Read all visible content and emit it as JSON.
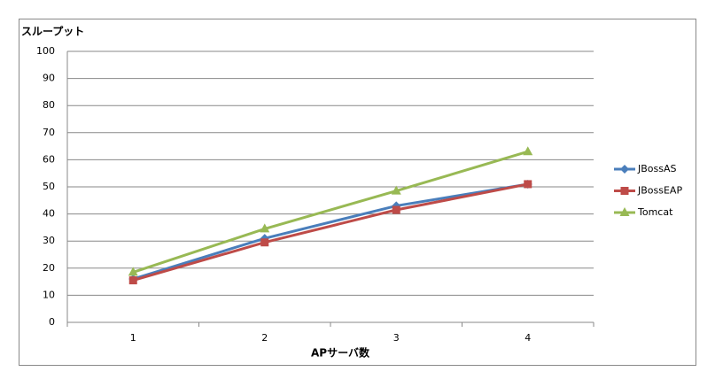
{
  "chart_data": {
    "type": "line",
    "y_axis_label": "スループット",
    "x_axis_label": "APサーバ数",
    "categories": [
      "1",
      "2",
      "3",
      "4"
    ],
    "series": [
      {
        "name": "JBossAS",
        "color": "#4a7ebb",
        "marker": "diamond",
        "values": [
          16,
          31,
          43,
          51
        ]
      },
      {
        "name": "JBossEAP",
        "color": "#be4b48",
        "marker": "square",
        "values": [
          15.5,
          29.5,
          41.5,
          51
        ]
      },
      {
        "name": "Tomcat",
        "color": "#98b954",
        "marker": "triangle",
        "values": [
          18.5,
          34.5,
          48.5,
          63
        ]
      }
    ],
    "ylim": [
      0,
      100
    ],
    "yticks": [
      0,
      10,
      20,
      30,
      40,
      50,
      60,
      70,
      80,
      90,
      100
    ],
    "grid": true,
    "legend": "right"
  }
}
